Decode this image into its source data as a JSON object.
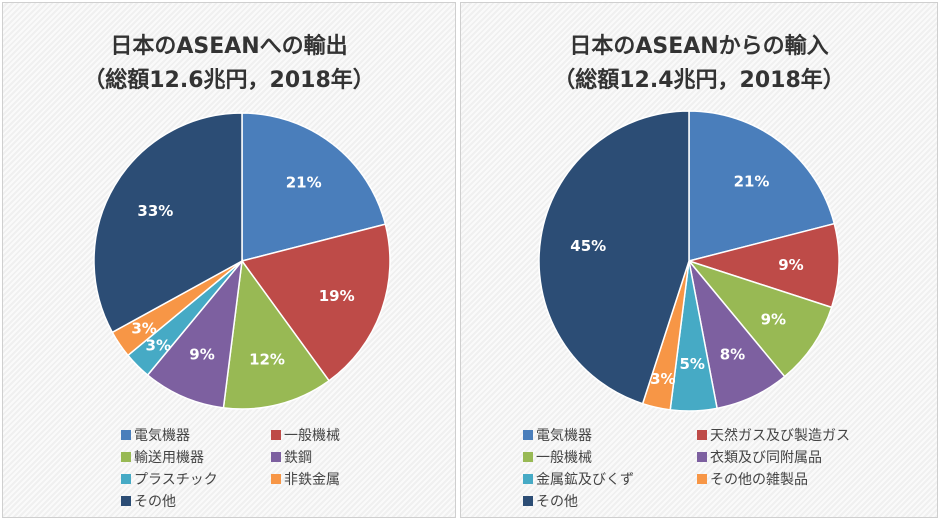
{
  "chart_data": [
    {
      "type": "pie",
      "title": "日本のASEANへの輸出",
      "subtitle": "（総額12.6兆円，2018年）",
      "categories": [
        "電気機器",
        "一般機械",
        "輸送用機器",
        "鉄鋼",
        "プラスチック",
        "非鉄金属",
        "その他"
      ],
      "values": [
        21,
        19,
        12,
        9,
        3,
        3,
        33
      ],
      "labels": [
        "21%",
        "19%",
        "12%",
        "9%",
        "3%",
        "3%",
        "33%"
      ],
      "colors": [
        "#4a7ebb",
        "#be4b48",
        "#98b954",
        "#7d60a0",
        "#46aac5",
        "#f79646",
        "#2c4d75"
      ],
      "legend": "bottom"
    },
    {
      "type": "pie",
      "title": "日本のASEANからの輸入",
      "subtitle": "（総額12.4兆円，2018年）",
      "categories": [
        "電気機器",
        "天然ガス及び製造ガス",
        "一般機械",
        "衣類及び同附属品",
        "金属鉱及びくず",
        "その他の雑製品",
        "その他"
      ],
      "values": [
        21,
        9,
        9,
        8,
        5,
        3,
        45
      ],
      "labels": [
        "21%",
        "9%",
        "9%",
        "8%",
        "5%",
        "3%",
        "45%"
      ],
      "colors": [
        "#4a7ebb",
        "#be4b48",
        "#98b954",
        "#7d60a0",
        "#46aac5",
        "#f79646",
        "#2c4d75"
      ],
      "legend": "bottom"
    }
  ]
}
